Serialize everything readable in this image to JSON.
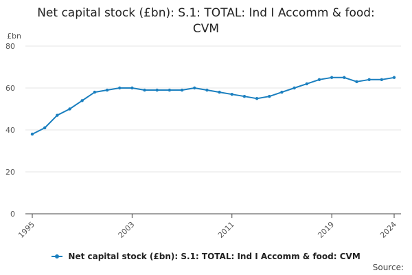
{
  "title_lines": [
    "Net capital stock (£bn): S.1: TOTAL: Ind I Accomm & food:",
    "CVM"
  ],
  "source_label": "Source:",
  "colors": {
    "series": "#1a7fbf",
    "grid": "#e6e6e6",
    "axis": "#444444",
    "tick_text": "#555555"
  },
  "chart_data": {
    "type": "line",
    "title": "Net capital stock (£bn): S.1: TOTAL: Ind I Accomm & food: CVM",
    "ylabel": "£bn",
    "xlabel": "",
    "ylim": [
      0,
      80
    ],
    "yticks": [
      0,
      20,
      40,
      60,
      80
    ],
    "xtick_labels": [
      "1995",
      "2003",
      "2011",
      "2019",
      "2024"
    ],
    "grid": true,
    "legend_position": "bottom",
    "x": [
      1995,
      1996,
      1997,
      1998,
      1999,
      2000,
      2001,
      2002,
      2003,
      2004,
      2005,
      2006,
      2007,
      2008,
      2009,
      2010,
      2011,
      2012,
      2013,
      2014,
      2015,
      2016,
      2017,
      2018,
      2019,
      2020,
      2021,
      2022,
      2023,
      2024
    ],
    "series": [
      {
        "name": "Net capital stock (£bn): S.1: TOTAL: Ind I Accomm & food: CVM",
        "values": [
          38,
          41,
          47,
          50,
          54,
          58,
          59,
          60,
          60,
          59,
          59,
          59,
          59,
          60,
          59,
          58,
          57,
          56,
          55,
          56,
          58,
          60,
          62,
          64,
          65,
          65,
          63,
          64,
          64,
          65
        ]
      }
    ]
  }
}
